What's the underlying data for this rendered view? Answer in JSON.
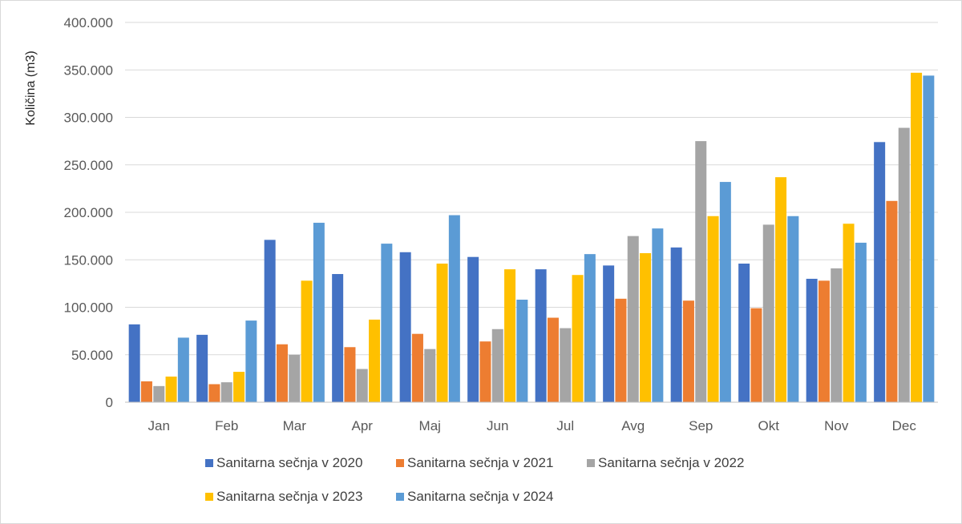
{
  "chart_data": {
    "type": "bar",
    "title": "",
    "xlabel": "",
    "ylabel": "Količina (m3)",
    "ylim": [
      0,
      400000
    ],
    "yticks": [
      {
        "value": 0,
        "label": "0"
      },
      {
        "value": 50000,
        "label": "50.000"
      },
      {
        "value": 100000,
        "label": "100.000"
      },
      {
        "value": 150000,
        "label": "150.000"
      },
      {
        "value": 200000,
        "label": "200.000"
      },
      {
        "value": 250000,
        "label": "250.000"
      },
      {
        "value": 300000,
        "label": "300.000"
      },
      {
        "value": 350000,
        "label": "350.000"
      },
      {
        "value": 400000,
        "label": "400.000"
      }
    ],
    "grid": true,
    "legend_position": "bottom",
    "categories": [
      "Jan",
      "Feb",
      "Mar",
      "Apr",
      "Maj",
      "Jun",
      "Jul",
      "Avg",
      "Sep",
      "Okt",
      "Nov",
      "Dec"
    ],
    "series": [
      {
        "name": "Sanitarna sečnja v 2020",
        "color": "#4472c4",
        "values": [
          82000,
          71000,
          171000,
          135000,
          158000,
          153000,
          140000,
          144000,
          163000,
          146000,
          130000,
          274000
        ]
      },
      {
        "name": "Sanitarna sečnja v 2021",
        "color": "#ed7d31",
        "values": [
          22000,
          19000,
          61000,
          58000,
          72000,
          64000,
          89000,
          109000,
          107000,
          99000,
          128000,
          212000
        ]
      },
      {
        "name": "Sanitarna sečnja v 2022",
        "color": "#a5a5a5",
        "values": [
          17000,
          21000,
          50000,
          35000,
          56000,
          77000,
          78000,
          175000,
          275000,
          187000,
          141000,
          289000
        ]
      },
      {
        "name": "Sanitarna sečnja v 2023",
        "color": "#ffc000",
        "values": [
          27000,
          32000,
          128000,
          87000,
          146000,
          140000,
          134000,
          157000,
          196000,
          237000,
          188000,
          347000
        ]
      },
      {
        "name": "Sanitarna sečnja v 2024",
        "color": "#5b9bd5",
        "values": [
          68000,
          86000,
          189000,
          167000,
          197000,
          108000,
          156000,
          183000,
          232000,
          196000,
          168000,
          344000
        ]
      }
    ]
  }
}
